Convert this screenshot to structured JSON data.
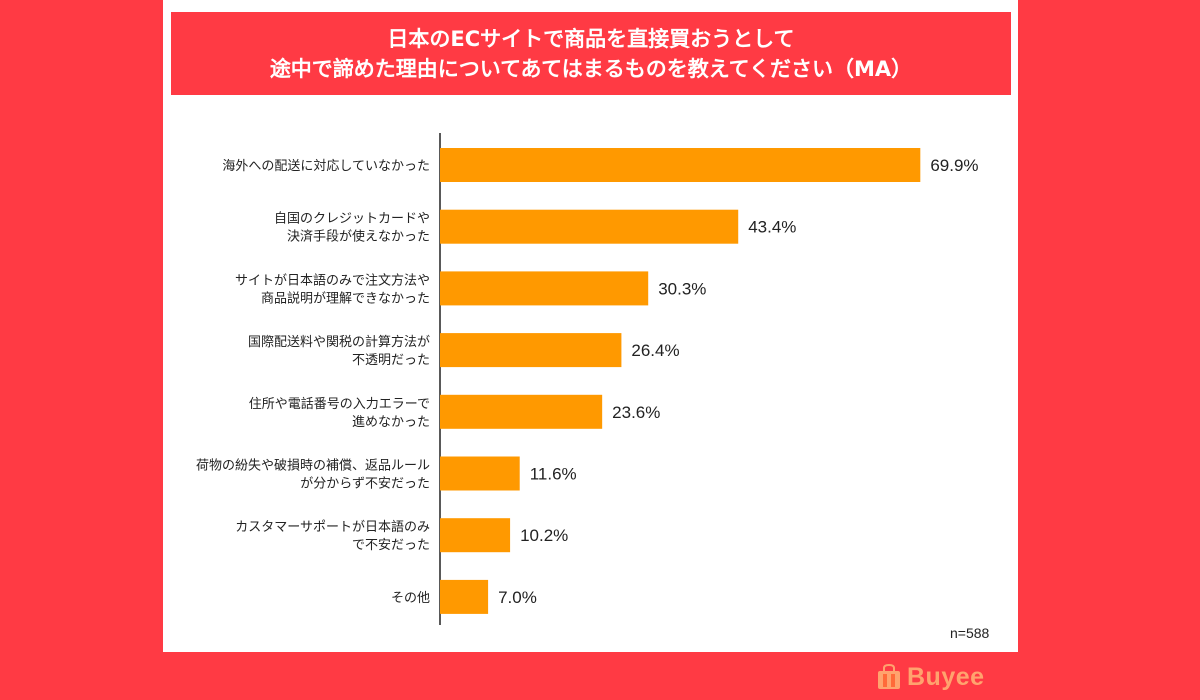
{
  "title_lines": [
    "日本のECサイトで商品を直接買おうとして",
    "途中で諦めた理由についてあてはまるものを教えてください（MA）"
  ],
  "note": "n=588",
  "logo_text": "Buyee",
  "colors": {
    "background": "#ff3a44",
    "bar": "#ff9900",
    "title_bg": "#ff3a44",
    "logo": "#ffa36e"
  },
  "icons": [
    "shopping-bag-icon"
  ],
  "chart_data": {
    "type": "bar",
    "orientation": "horizontal",
    "title": "日本のECサイトで商品を直接買おうとして途中で諦めた理由についてあてはまるものを教えてください（MA）",
    "categories": [
      [
        "海外への配送に対応していなかった"
      ],
      [
        "自国のクレジットカードや",
        "決済手段が使えなかった"
      ],
      [
        "サイトが日本語のみで注文方法や",
        "商品説明が理解できなかった"
      ],
      [
        "国際配送料や関税の計算方法が",
        "不透明だった"
      ],
      [
        "住所や電話番号の入力エラーで",
        "進めなかった"
      ],
      [
        "荷物の紛失や破損時の補償、返品ルール",
        "が分からず不安だった"
      ],
      [
        "カスタマーサポートが日本語のみ",
        "で不安だった"
      ],
      [
        "その他"
      ]
    ],
    "values": [
      69.9,
      43.4,
      30.3,
      26.4,
      23.6,
      11.6,
      10.2,
      7.0
    ],
    "value_labels": [
      "69.9%",
      "43.4%",
      "30.3%",
      "26.4%",
      "23.6%",
      "11.6%",
      "10.2%",
      "7.0%"
    ],
    "xlim": [
      0,
      70
    ],
    "xlabel": "",
    "ylabel": "",
    "grid": false,
    "legend": "none"
  }
}
